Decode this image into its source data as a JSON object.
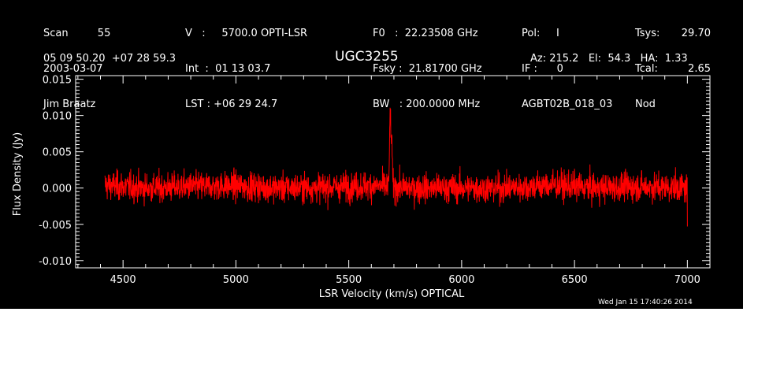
{
  "header": {
    "col1": [
      "Scan         55",
      "2003-03-07",
      "Jim Braatz"
    ],
    "col2": [
      "V   :     5700.0 OPTI-LSR",
      "Int  :  01 13 03.7",
      "LST : +06 29 24.7"
    ],
    "col3": [
      "F0   :  22.23508 GHz",
      "Fsky :  21.81700 GHz",
      "BW   : 200.0000 MHz"
    ],
    "col4": [
      "Pol:     I",
      "IF :      0",
      "AGBT02B_018_03"
    ],
    "col5": [
      "Tsys:",
      "Tcal:",
      "Nod"
    ],
    "col6": [
      "29.70",
      "2.65",
      ""
    ],
    "coords": "05 09 50.20  +07 28 59.3",
    "source": "UGC3255",
    "azel": "Az: 215.2   El:  54.3   HA:  1.33"
  },
  "timestamp": "Wed Jan 15 17:40:26 2014",
  "colors": {
    "background": "#000000",
    "trace": "#ff0000",
    "axes": "#ffffff"
  },
  "chart_data": {
    "type": "line",
    "xlabel": "LSR Velocity (km/s) OPTICAL",
    "ylabel": "Flux Density (Jy)",
    "xlim": [
      4290,
      7100
    ],
    "ylim": [
      -0.011,
      0.0155
    ],
    "xticks": [
      4500,
      5000,
      5500,
      6000,
      6500,
      7000
    ],
    "xtick_labels": [
      "4500",
      "5000",
      "5500",
      "6000",
      "6500",
      "7000"
    ],
    "yticks": [
      -0.01,
      -0.005,
      0.0,
      0.005,
      0.01,
      0.015
    ],
    "ytick_labels": [
      "-0.010",
      "-0.005",
      "0.000",
      "0.005",
      "0.010",
      "0.015"
    ],
    "grid": false,
    "series": [
      {
        "x_start": 4420,
        "x_end": 7000,
        "baseline": [
          [
            4420,
            0.0004
          ],
          [
            4600,
            0.0
          ],
          [
            4800,
            0.0002
          ],
          [
            5000,
            0.0003
          ],
          [
            5200,
            0.0
          ],
          [
            5400,
            0.0001
          ],
          [
            5600,
            0.0003
          ],
          [
            5800,
            0.0
          ],
          [
            6000,
            0.0
          ],
          [
            6200,
            0.0
          ],
          [
            6400,
            0.0004
          ],
          [
            6600,
            0.0
          ],
          [
            6800,
            0.0002
          ],
          [
            7000,
            0.0
          ]
        ],
        "noise_rms": 0.0016,
        "peaks": [
          [
            5683,
            0.0104
          ],
          [
            5690,
            0.0072
          ]
        ]
      }
    ]
  }
}
